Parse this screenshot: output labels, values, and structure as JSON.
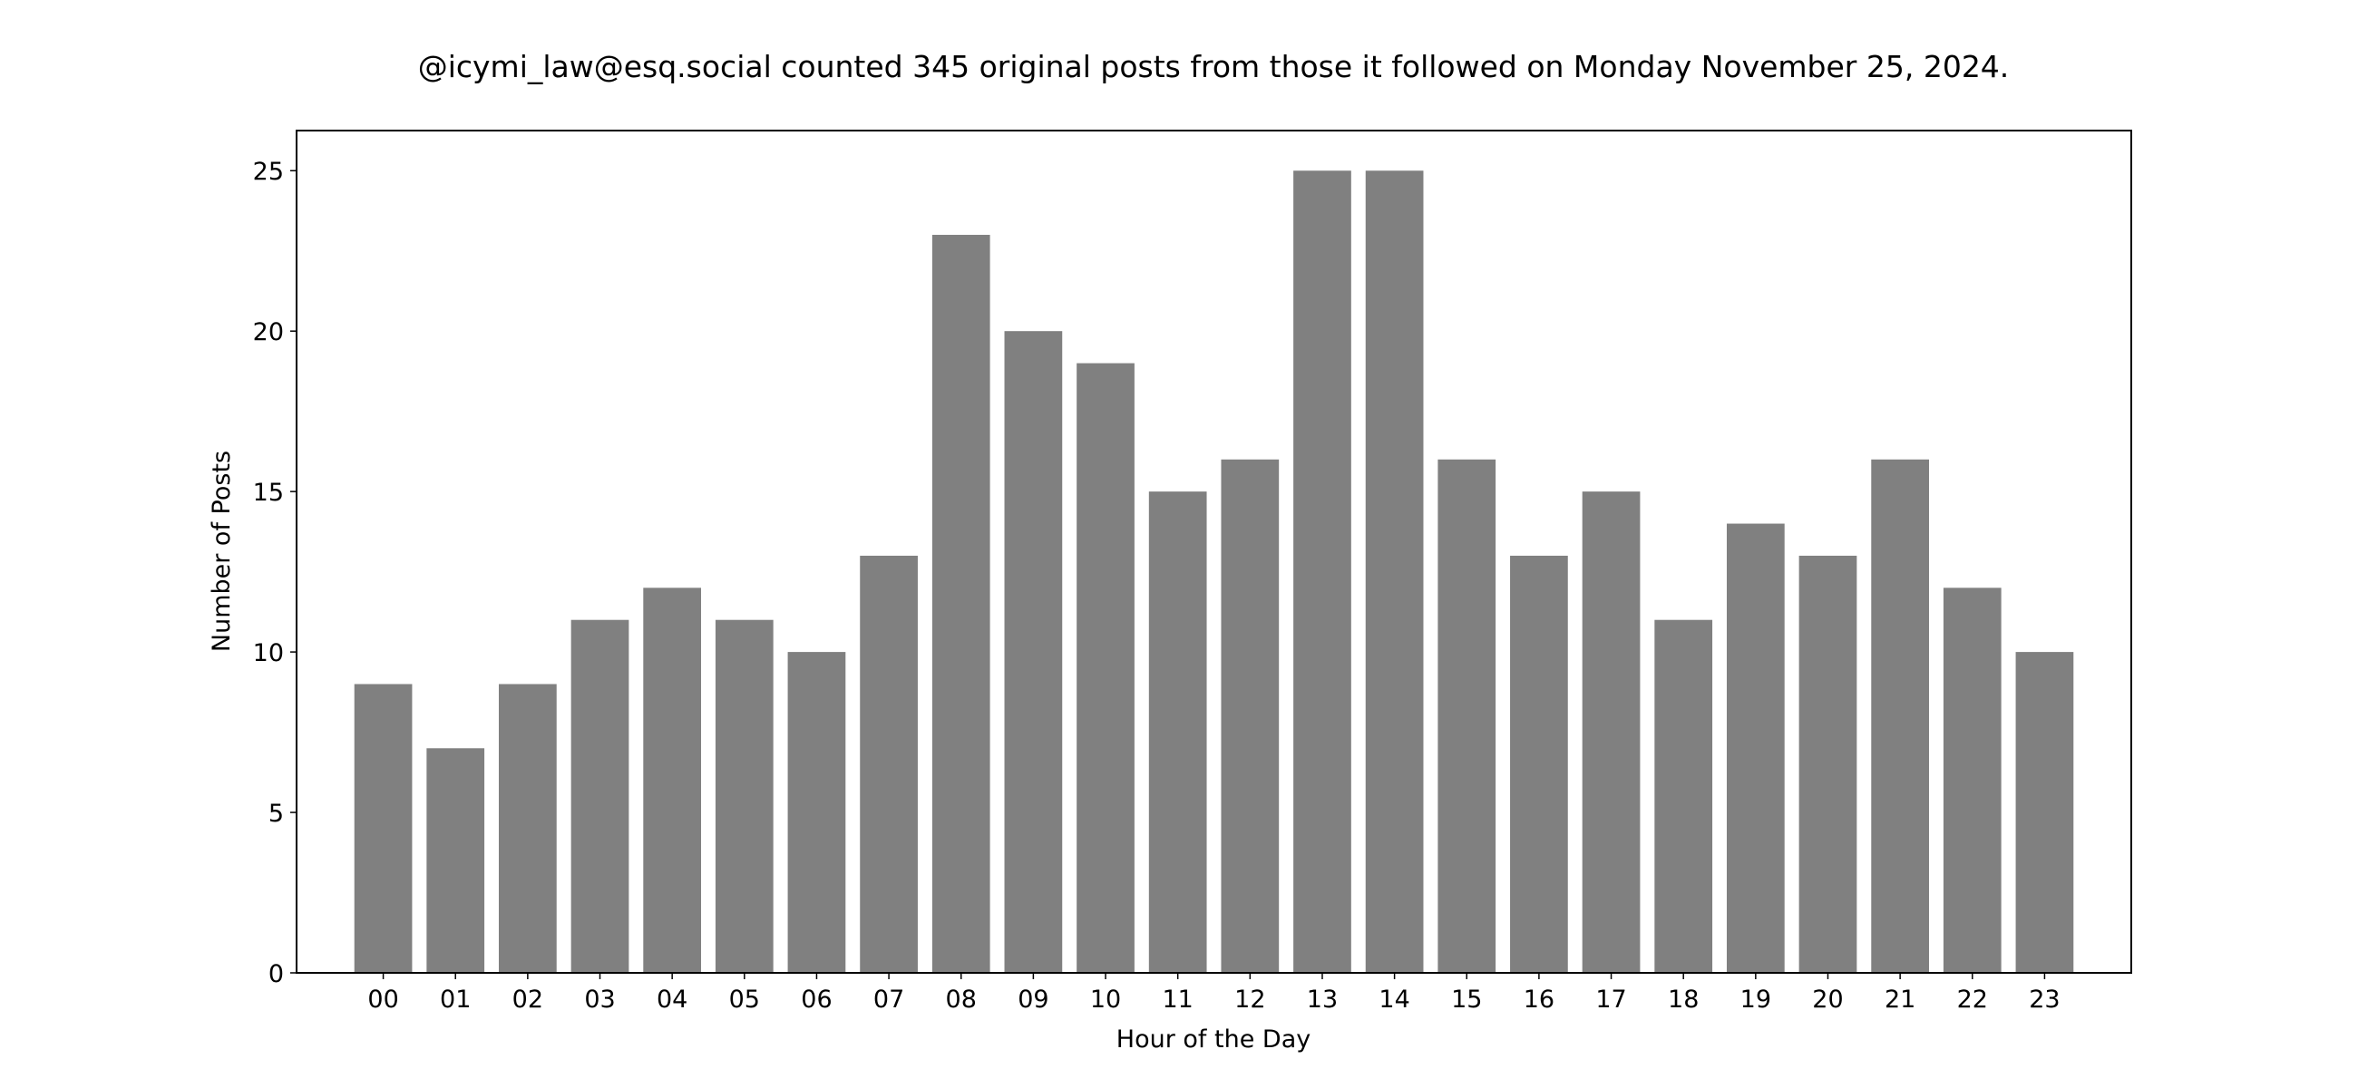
{
  "chart_data": {
    "type": "bar",
    "title": "@icymi_law@esq.social counted 345 original posts from those it followed on Monday November 25, 2024.",
    "xlabel": "Hour of the Day",
    "ylabel": "Number of Posts",
    "categories": [
      "00",
      "01",
      "02",
      "03",
      "04",
      "05",
      "06",
      "07",
      "08",
      "09",
      "10",
      "11",
      "12",
      "13",
      "14",
      "15",
      "16",
      "17",
      "18",
      "19",
      "20",
      "21",
      "22",
      "23"
    ],
    "values": [
      9,
      7,
      9,
      11,
      12,
      11,
      10,
      13,
      23,
      20,
      19,
      15,
      16,
      25,
      25,
      16,
      13,
      15,
      11,
      14,
      13,
      16,
      12,
      10
    ],
    "ylim": [
      0,
      26.25
    ],
    "yticks": [
      0,
      5,
      10,
      15,
      20,
      25
    ],
    "grid": false,
    "bar_color": "#808080"
  }
}
